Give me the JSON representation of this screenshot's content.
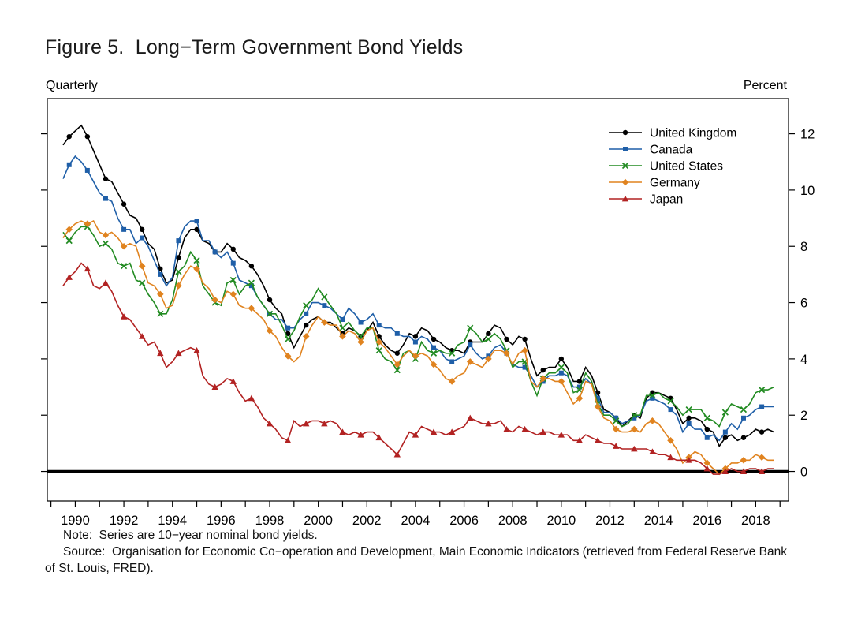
{
  "figure": {
    "title": "Figure 5.  Long−Term Government Bond Yields",
    "frequency_label": "Quarterly",
    "unit_label": "Percent",
    "note": "Note:  Series are 10−year nominal bond yields.",
    "source": "Source:  Organisation for Economic Co−operation and Development, Main Economic Indicators (retrieved from Federal Reserve Bank of St. Louis, FRED)."
  },
  "chart_data": {
    "type": "line",
    "title": "Figure 5. Long-Term Government Bond Yields",
    "frequency": "Quarterly",
    "ylabel": "Percent",
    "grid": false,
    "legend_position": "top-right",
    "zero_line": true,
    "x_start": 1989.5,
    "x_step": 0.25,
    "x_range": [
      1988.85,
      2019.35
    ],
    "y_range": [
      -1.05,
      13.25
    ],
    "y_ticks": [
      0,
      2,
      4,
      6,
      8,
      10,
      12
    ],
    "x_tick_years_labeled": [
      1990,
      1992,
      1994,
      1996,
      1998,
      2000,
      2002,
      2004,
      2006,
      2008,
      2010,
      2012,
      2014,
      2016,
      2018
    ],
    "x_tick_minor_every_year": true,
    "series": [
      {
        "name": "United Kingdom",
        "color": "#000000",
        "marker": "circle",
        "values": [
          11.6,
          11.9,
          12.1,
          12.3,
          11.9,
          11.4,
          10.9,
          10.4,
          10.3,
          9.9,
          9.5,
          9.1,
          9.0,
          8.6,
          8.1,
          7.9,
          7.2,
          6.7,
          6.8,
          7.6,
          8.3,
          8.6,
          8.6,
          8.2,
          8.1,
          7.8,
          7.8,
          8.1,
          7.9,
          7.6,
          7.5,
          7.3,
          7.0,
          6.6,
          6.1,
          5.8,
          5.6,
          4.9,
          4.4,
          4.8,
          5.2,
          5.4,
          5.5,
          5.3,
          5.3,
          5.1,
          4.9,
          5.1,
          5.0,
          4.8,
          5.0,
          5.3,
          4.8,
          4.5,
          4.3,
          4.2,
          4.5,
          4.9,
          4.8,
          5.1,
          5.0,
          4.7,
          4.6,
          4.4,
          4.3,
          4.3,
          4.2,
          4.6,
          4.6,
          4.6,
          4.9,
          5.2,
          5.1,
          4.7,
          4.5,
          4.8,
          4.7,
          4.0,
          3.4,
          3.6,
          3.7,
          3.7,
          4.0,
          3.7,
          3.2,
          3.2,
          3.7,
          3.4,
          2.8,
          2.2,
          2.1,
          1.9,
          1.6,
          1.8,
          2.0,
          1.9,
          2.6,
          2.8,
          2.8,
          2.7,
          2.6,
          2.2,
          1.7,
          1.9,
          1.9,
          1.8,
          1.5,
          1.4,
          0.9,
          1.2,
          1.3,
          1.1,
          1.2,
          1.3,
          1.5,
          1.4,
          1.5,
          1.4
        ]
      },
      {
        "name": "Canada",
        "color": "#1f5fa8",
        "marker": "square",
        "values": [
          10.4,
          10.9,
          11.2,
          11.0,
          10.7,
          10.3,
          9.9,
          9.7,
          9.6,
          9.0,
          8.6,
          8.6,
          8.1,
          8.3,
          8.0,
          7.5,
          7.0,
          6.6,
          6.9,
          8.2,
          8.7,
          8.9,
          8.9,
          8.2,
          8.2,
          7.8,
          7.6,
          7.8,
          7.4,
          6.8,
          6.7,
          6.6,
          6.2,
          5.9,
          5.6,
          5.4,
          5.4,
          5.1,
          5.1,
          5.4,
          5.6,
          6.0,
          6.0,
          5.9,
          5.8,
          5.6,
          5.4,
          5.8,
          5.6,
          5.3,
          5.4,
          5.6,
          5.2,
          5.1,
          5.1,
          4.9,
          4.8,
          4.8,
          4.6,
          4.8,
          4.7,
          4.4,
          4.3,
          4.0,
          3.9,
          4.0,
          4.1,
          4.5,
          4.2,
          4.0,
          4.1,
          4.4,
          4.5,
          4.2,
          3.8,
          3.7,
          3.7,
          3.4,
          3.0,
          3.2,
          3.4,
          3.4,
          3.5,
          3.4,
          3.0,
          3.0,
          3.3,
          3.1,
          2.6,
          2.1,
          2.1,
          1.9,
          1.7,
          1.8,
          1.9,
          2.0,
          2.5,
          2.6,
          2.5,
          2.4,
          2.2,
          2.0,
          1.4,
          1.7,
          1.5,
          1.5,
          1.2,
          1.3,
          1.1,
          1.4,
          1.7,
          1.5,
          1.9,
          2.0,
          2.2,
          2.3,
          2.3,
          2.3
        ]
      },
      {
        "name": "United States",
        "color": "#228b22",
        "marker": "x",
        "values": [
          8.5,
          8.2,
          8.5,
          8.7,
          8.7,
          8.4,
          8.0,
          8.1,
          7.9,
          7.4,
          7.3,
          7.4,
          6.8,
          6.7,
          6.3,
          6.0,
          5.6,
          5.6,
          6.1,
          7.1,
          7.3,
          7.8,
          7.5,
          6.6,
          6.3,
          6.0,
          5.9,
          6.7,
          6.8,
          6.3,
          6.6,
          6.7,
          6.2,
          5.9,
          5.6,
          5.6,
          5.2,
          4.7,
          5.0,
          5.5,
          5.9,
          6.1,
          6.5,
          6.2,
          5.9,
          5.6,
          5.1,
          5.3,
          5.0,
          4.8,
          5.1,
          5.1,
          4.3,
          4.0,
          3.9,
          3.6,
          4.2,
          4.3,
          4.0,
          4.6,
          4.3,
          4.2,
          4.3,
          4.2,
          4.2,
          4.5,
          4.6,
          5.1,
          4.9,
          4.6,
          4.7,
          4.9,
          4.7,
          4.3,
          3.7,
          3.9,
          3.9,
          3.2,
          2.7,
          3.3,
          3.5,
          3.5,
          3.7,
          3.5,
          2.8,
          2.9,
          3.5,
          3.2,
          2.4,
          2.0,
          2.0,
          1.8,
          1.6,
          1.7,
          2.0,
          2.0,
          2.7,
          2.7,
          2.8,
          2.6,
          2.5,
          2.3,
          2.0,
          2.2,
          2.2,
          2.2,
          1.9,
          1.8,
          1.6,
          2.1,
          2.4,
          2.3,
          2.2,
          2.4,
          2.8,
          2.9,
          2.9,
          3.0
        ]
      },
      {
        "name": "Germany",
        "color": "#e0831f",
        "marker": "diamond",
        "values": [
          8.3,
          8.6,
          8.8,
          8.9,
          8.8,
          8.9,
          8.5,
          8.4,
          8.5,
          8.3,
          8.0,
          8.1,
          8.0,
          7.3,
          6.7,
          6.6,
          6.3,
          5.8,
          5.9,
          6.6,
          7.0,
          7.3,
          7.2,
          6.7,
          6.5,
          6.1,
          6.0,
          6.4,
          6.3,
          5.9,
          5.8,
          5.8,
          5.6,
          5.4,
          5.0,
          4.8,
          4.4,
          4.1,
          3.9,
          4.1,
          4.8,
          5.2,
          5.5,
          5.3,
          5.2,
          5.2,
          4.8,
          5.0,
          4.9,
          4.6,
          5.0,
          5.1,
          4.6,
          4.4,
          4.1,
          3.8,
          4.1,
          4.3,
          4.1,
          4.2,
          4.1,
          3.8,
          3.6,
          3.3,
          3.2,
          3.4,
          3.5,
          3.9,
          3.8,
          3.7,
          4.0,
          4.3,
          4.3,
          4.2,
          3.8,
          4.2,
          4.3,
          3.2,
          3.0,
          3.3,
          3.3,
          3.2,
          3.2,
          2.8,
          2.4,
          2.6,
          3.2,
          3.1,
          2.3,
          1.9,
          1.8,
          1.5,
          1.4,
          1.4,
          1.5,
          1.4,
          1.7,
          1.8,
          1.7,
          1.4,
          1.1,
          0.8,
          0.3,
          0.5,
          0.7,
          0.6,
          0.3,
          0.1,
          -0.1,
          0.1,
          0.3,
          0.3,
          0.4,
          0.4,
          0.6,
          0.5,
          0.4,
          0.4
        ]
      },
      {
        "name": "Japan",
        "color": "#b22222",
        "marker": "triangle",
        "values": [
          6.6,
          6.9,
          7.1,
          7.4,
          7.2,
          6.6,
          6.5,
          6.7,
          6.4,
          5.9,
          5.5,
          5.4,
          5.1,
          4.8,
          4.5,
          4.6,
          4.2,
          3.7,
          3.9,
          4.2,
          4.3,
          4.4,
          4.3,
          3.4,
          3.1,
          3.0,
          3.1,
          3.3,
          3.2,
          2.8,
          2.5,
          2.6,
          2.3,
          1.9,
          1.7,
          1.5,
          1.2,
          1.1,
          1.8,
          1.6,
          1.7,
          1.8,
          1.8,
          1.7,
          1.8,
          1.7,
          1.4,
          1.3,
          1.4,
          1.3,
          1.4,
          1.4,
          1.2,
          1.0,
          0.8,
          0.6,
          1.0,
          1.4,
          1.3,
          1.6,
          1.5,
          1.4,
          1.4,
          1.3,
          1.4,
          1.5,
          1.6,
          1.9,
          1.8,
          1.7,
          1.7,
          1.7,
          1.8,
          1.5,
          1.4,
          1.6,
          1.5,
          1.4,
          1.3,
          1.4,
          1.4,
          1.3,
          1.3,
          1.3,
          1.1,
          1.1,
          1.3,
          1.2,
          1.1,
          1.0,
          1.0,
          0.9,
          0.8,
          0.8,
          0.8,
          0.8,
          0.8,
          0.7,
          0.6,
          0.6,
          0.5,
          0.4,
          0.4,
          0.4,
          0.4,
          0.3,
          0.1,
          -0.1,
          -0.1,
          0.0,
          0.1,
          0.0,
          0.0,
          0.1,
          0.1,
          0.0,
          0.1,
          0.1
        ]
      }
    ]
  }
}
